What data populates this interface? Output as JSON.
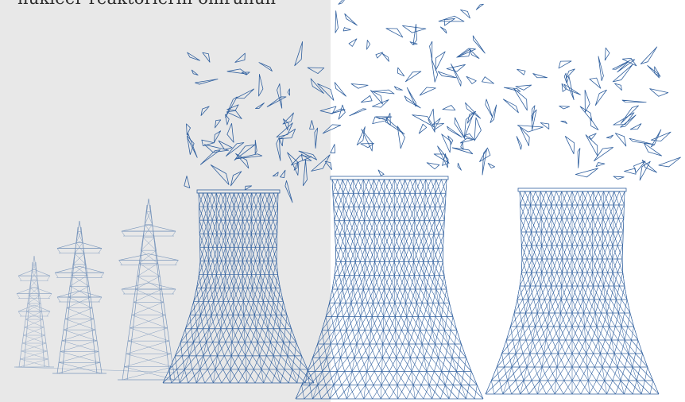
{
  "caption": "nükleer reaktörlerin ömrünün",
  "colors": {
    "panel": "#e8e8e8",
    "line": "#2f5f9e",
    "line_light": "#6f8fb8",
    "background": "#ffffff"
  },
  "illustration": {
    "towers": [
      "cooling-tower-left",
      "cooling-tower-center",
      "cooling-tower-right"
    ],
    "pylons": [
      "pylon-small",
      "pylon-medium",
      "pylon-large"
    ],
    "style": "wireframe line-art"
  }
}
